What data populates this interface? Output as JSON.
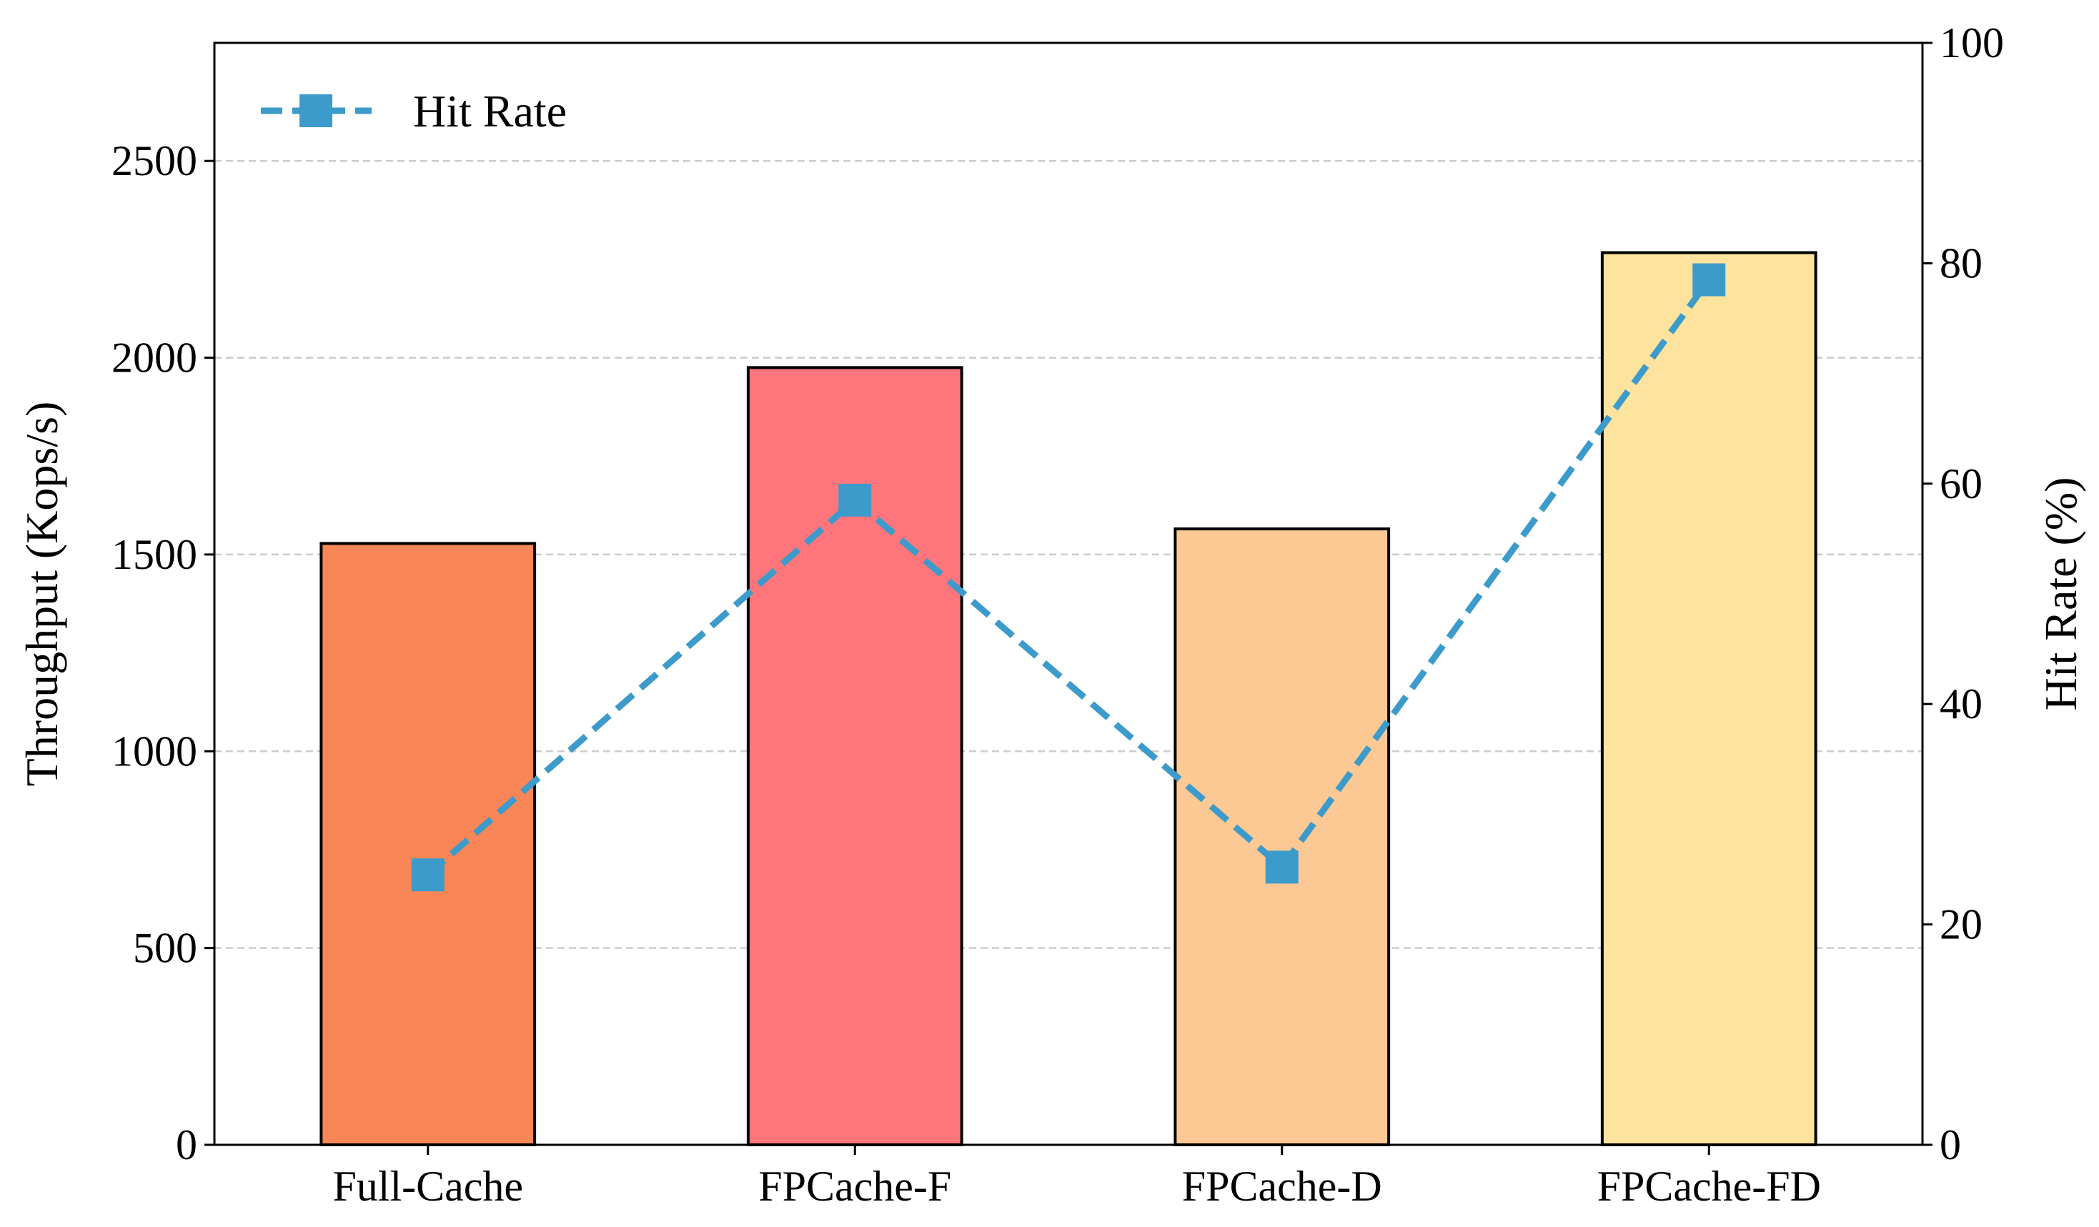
{
  "chart_data": {
    "type": "bar",
    "categories": [
      "Full-Cache",
      "FPCache-F",
      "FPCache-D",
      "FPCache-FD"
    ],
    "series": [
      {
        "type": "bar",
        "axis": "left",
        "values": [
          1528,
          1975,
          1565,
          2267
        ],
        "colors": [
          "#f88656",
          "#fe767b",
          "#fcc994",
          "#fde39d"
        ]
      },
      {
        "type": "line",
        "axis": "right",
        "name": "Hit Rate",
        "values": [
          24.5,
          58.5,
          25.2,
          78.5
        ],
        "color": "#3d9bcb",
        "line_style": "dashed",
        "marker": "square"
      }
    ],
    "ylabel": "Throughput (Kops/s)",
    "ylim": [
      0,
      2800
    ],
    "yticks": [
      0,
      500,
      1000,
      1500,
      2000,
      2500
    ],
    "y2label": "Hit Rate (%)",
    "y2lim": [
      0,
      100
    ],
    "y2ticks": [
      0,
      20,
      40,
      60,
      80,
      100
    ],
    "grid": true,
    "legend": {
      "placement": "top-left",
      "entries": [
        "Hit Rate"
      ]
    }
  }
}
